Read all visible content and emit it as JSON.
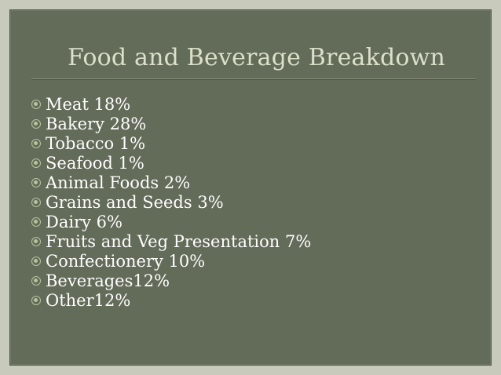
{
  "slide": {
    "title": "Food and Beverage Breakdown",
    "bullet_icon": "circle-dot-bullet-icon",
    "items": [
      "Meat 18%",
      "Bakery 28%",
      "Tobacco 1%",
      "Seafood 1%",
      "Animal Foods 2%",
      "Grains and Seeds 3%",
      "Dairy 6%",
      "Fruits and Veg Presentation 7%",
      "Confectionery 10%",
      "Beverages12%",
      "Other12%"
    ]
  },
  "colors": {
    "background": "#636b59",
    "title": "#dbe0c9",
    "text": "#ffffff",
    "bullet": "#b7c39e"
  }
}
